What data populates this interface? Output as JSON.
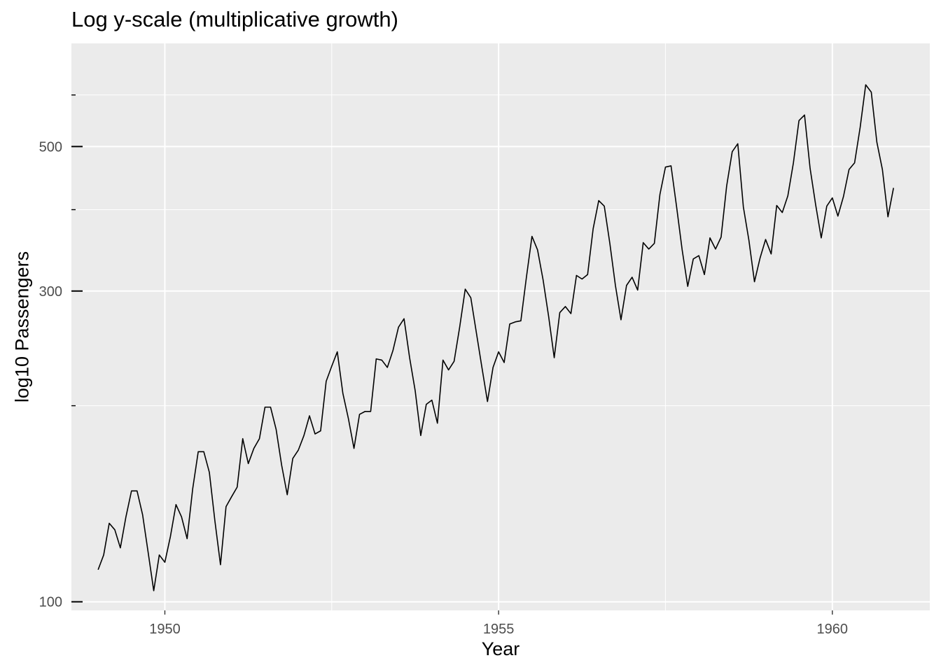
{
  "chart_data": {
    "type": "line",
    "title": "Log y-scale (multiplicative growth)",
    "xlabel": "Year",
    "ylabel": "log10 Passengers",
    "y_scale": "log10",
    "xlim": [
      1948.6,
      1961.46
    ],
    "ylim": [
      97,
      720
    ],
    "x_major_ticks": [
      1950,
      1955,
      1960
    ],
    "x_tick_labels": [
      "1950",
      "1955",
      "1960"
    ],
    "y_major_ticks": [
      100,
      300,
      500
    ],
    "y_tick_labels": [
      "100",
      "300",
      "500"
    ],
    "y_minor_ticks": [
      200,
      400,
      600
    ],
    "grid": true,
    "background_color": "#EBEBEB",
    "grid_color": "#FFFFFF",
    "line_color": "#000000",
    "series": [
      {
        "x_start": 1949.0,
        "x_step": 0.083333,
        "values": [
          112,
          118,
          132,
          129,
          121,
          135,
          148,
          148,
          136,
          119,
          104,
          118,
          115,
          126,
          141,
          135,
          125,
          149,
          170,
          170,
          158,
          133,
          114,
          140,
          145,
          150,
          178,
          163,
          172,
          178,
          199,
          199,
          184,
          162,
          146,
          166,
          171,
          180,
          193,
          181,
          183,
          218,
          230,
          242,
          209,
          191,
          172,
          194,
          196,
          196,
          236,
          235,
          229,
          243,
          264,
          272,
          237,
          211,
          180,
          201,
          204,
          188,
          235,
          227,
          234,
          264,
          302,
          293,
          259,
          229,
          203,
          229,
          242,
          233,
          267,
          269,
          270,
          315,
          364,
          347,
          312,
          274,
          237,
          278,
          284,
          277,
          317,
          313,
          318,
          374,
          413,
          405,
          355,
          306,
          271,
          306,
          315,
          301,
          356,
          348,
          355,
          422,
          465,
          467,
          404,
          347,
          305,
          336,
          340,
          318,
          362,
          348,
          363,
          435,
          491,
          505,
          404,
          359,
          310,
          337,
          360,
          342,
          406,
          396,
          420,
          472,
          548,
          559,
          463,
          407,
          362,
          405,
          417,
          391,
          419,
          461,
          472,
          535,
          622,
          606,
          508,
          461,
          390,
          432
        ]
      }
    ]
  }
}
